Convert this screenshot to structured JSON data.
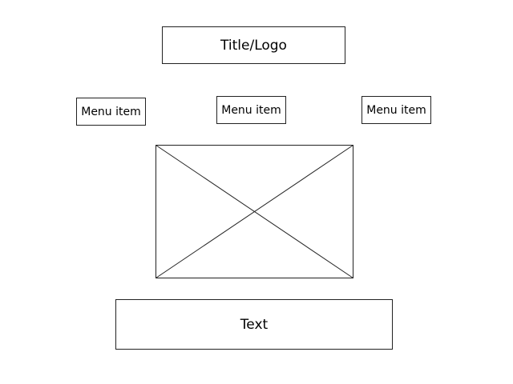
{
  "header": {
    "title_logo": "Title/Logo"
  },
  "menu": {
    "items": [
      {
        "label": "Menu item"
      },
      {
        "label": "Menu item"
      },
      {
        "label": "Menu item"
      }
    ]
  },
  "main": {
    "text": "Text"
  }
}
